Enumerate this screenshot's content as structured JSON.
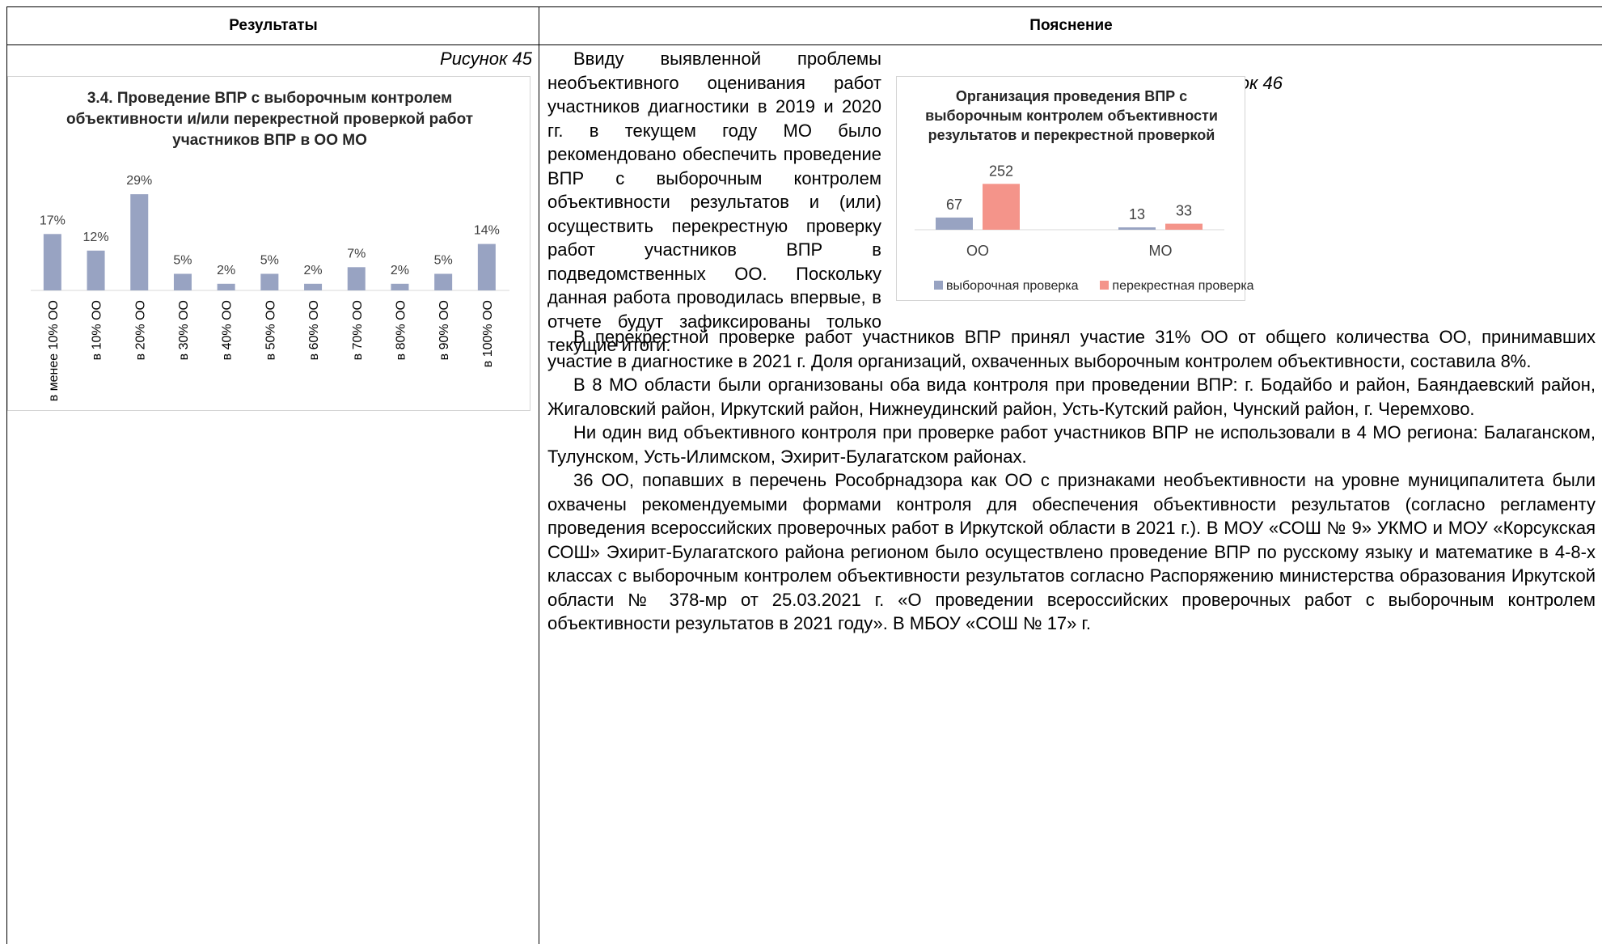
{
  "table": {
    "col1_header": "Результаты",
    "col2_header": "Пояснение"
  },
  "left": {
    "caption": "Рисунок 45",
    "chart_data": {
      "type": "bar",
      "title": "3.4. Проведение ВПР с выборочным контролем объективности и/или перекрестной проверкой работ участников ВПР в ОО МО",
      "categories": [
        "в менее 10% ОО",
        "в 10% ОО",
        "в 20% ОО",
        "в 30% ОО",
        "в 40% ОО",
        "в 50% ОО",
        "в 60% ОО",
        "в 70% ОО",
        "в 80% ОО",
        "в 90% ОО",
        "в 100% ОО"
      ],
      "values": [
        17,
        12,
        29,
        5,
        2,
        5,
        2,
        7,
        2,
        5,
        14
      ],
      "value_labels": [
        "17%",
        "12%",
        "29%",
        "5%",
        "2%",
        "5%",
        "2%",
        "7%",
        "2%",
        "5%",
        "14%"
      ],
      "unit": "%",
      "bar_color": "#98a3c2",
      "grid": false,
      "legend": false
    }
  },
  "right": {
    "caption": "Рисунок 46",
    "intro_text": "Ввиду выявленной проблемы необъективного оценивания работ участников диагностики в 2019 и 2020 гг. в текущем году МО было рекомендовано обеспечить проведение ВПР с выборочным контролем объективности результатов и (или) осуществить перекрестную проверку работ участников ВПР в подведомственных ОО. Поскольку данная работа проводилась впервые, в отчете будут зафиксированы только текущие итоги.",
    "chart_data": {
      "type": "bar",
      "title": "Организация проведения ВПР с выборочным контролем объективности результатов и перекрестной проверкой",
      "categories": [
        "ОО",
        "МО"
      ],
      "series": [
        {
          "name": "выборочная проверка",
          "values": [
            67,
            13
          ],
          "color": "#98a3c2"
        },
        {
          "name": "перекрестная проверка",
          "values": [
            252,
            33
          ],
          "color": "#f4948a"
        }
      ],
      "grid": false,
      "legend": "bottom"
    },
    "paragraphs": [
      "В перекрестной проверке работ участников ВПР принял участие 31% ОО от общего количества ОО, принимавших участие в диагностике в 2021 г. Доля организаций, охваченных выборочным контролем объективности, составила 8%.",
      "В 8 МО области были организованы оба вида контроля при проведении ВПР: г. Бодайбо и район, Баяндаевский район, Жигаловский район, Иркутский район, Нижнеудинский район, Усть-Кутский район, Чунский район, г. Черемхово.",
      "Ни один вид объективного контроля при проверке работ участников ВПР не использовали в 4 МО региона: Балаганском, Тулунском, Усть-Илимском, Эхирит-Булагатском районах.",
      "36 ОО, попавших в перечень Рособрнадзора как ОО с признаками необъективности на уровне муниципалитета были охвачены рекомендуемыми формами контроля для обеспечения объективности результатов (согласно регламенту проведения всероссийских проверочных работ в Иркутской области в 2021 г.). В МОУ «СОШ № 9» УКМО и МОУ «Корсукская СОШ» Эхирит-Булагатского района регионом было осуществлено проведение ВПР по русскому языку и математике в 4-8-х классах с выборочным контролем объективности результатов согласно Распоряжению министерства образования Иркутской области № 378-мр от 25.03.2021 г. «О проведении всероссийских проверочных работ с выборочным контролем объективности результатов в 2021 году». В МБОУ «СОШ № 17» г."
    ]
  }
}
